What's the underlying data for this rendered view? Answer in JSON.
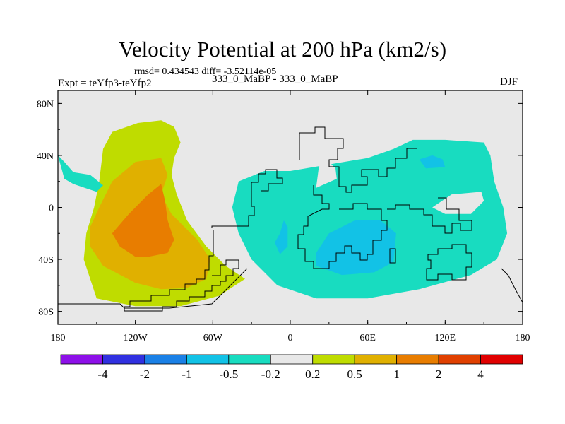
{
  "chart_data": {
    "type": "heatmap",
    "title": "Velocity Potential at 200 hPa (km2/s)",
    "stats": "rmsd= 0.434543 diff= -3.52114e-05",
    "left_label": "Expt = teYfp3-teYfp2",
    "center_label": "333_0_MaBP - 333_0_MaBP",
    "right_label": "DJF",
    "x_axis": {
      "range": [
        -180,
        180
      ],
      "ticks": [
        -180,
        -120,
        -60,
        0,
        60,
        120,
        180
      ],
      "tick_labels": [
        "180",
        "120W",
        "60W",
        "0",
        "60E",
        "120E",
        "180"
      ]
    },
    "y_axis": {
      "range": [
        -90,
        90
      ],
      "ticks": [
        80,
        40,
        0,
        -40,
        -80
      ],
      "tick_labels": [
        "80N",
        "40N",
        "0",
        "40S",
        "80S"
      ]
    },
    "colorbar": {
      "colors": [
        "#8d10e8",
        "#3030e0",
        "#1a80e6",
        "#12c2e6",
        "#18dcc0",
        "#e8e8e8",
        "#bfdc00",
        "#e0b000",
        "#e87d00",
        "#e04000",
        "#e00000"
      ],
      "tick_labels": [
        "-4",
        "-2",
        "-1",
        "-0.5",
        "-0.2",
        "0.2",
        "0.5",
        "1",
        "2",
        "4"
      ]
    },
    "contours": [
      {
        "level": "0.2 to 0.5",
        "color": "#bfdc00",
        "points": [
          [
            -150,
            -70
          ],
          [
            -155,
            -55
          ],
          [
            -160,
            -40
          ],
          [
            -158,
            -20
          ],
          [
            -152,
            0
          ],
          [
            -148,
            20
          ],
          [
            -145,
            45
          ],
          [
            -138,
            58
          ],
          [
            -118,
            65
          ],
          [
            -100,
            67
          ],
          [
            -90,
            62
          ],
          [
            -85,
            50
          ],
          [
            -90,
            38
          ],
          [
            -92,
            25
          ],
          [
            -88,
            10
          ],
          [
            -80,
            -10
          ],
          [
            -65,
            -30
          ],
          [
            -50,
            -45
          ],
          [
            -35,
            -55
          ],
          [
            -55,
            -68
          ],
          [
            -85,
            -76
          ],
          [
            -120,
            -76
          ]
        ]
      },
      {
        "level": "0.5 to 1",
        "color": "#e0b000",
        "points": [
          [
            -120,
            -58
          ],
          [
            -145,
            -45
          ],
          [
            -155,
            -30
          ],
          [
            -155,
            -15
          ],
          [
            -148,
            0
          ],
          [
            -138,
            20
          ],
          [
            -120,
            35
          ],
          [
            -100,
            38
          ],
          [
            -95,
            25
          ],
          [
            -100,
            10
          ],
          [
            -92,
            -5
          ],
          [
            -72,
            -25
          ],
          [
            -62,
            -40
          ],
          [
            -65,
            -55
          ],
          [
            -80,
            -62
          ],
          [
            -100,
            -63
          ]
        ]
      },
      {
        "level": "1 to 2",
        "color": "#e87d00",
        "points": [
          [
            -120,
            -38
          ],
          [
            -132,
            -30
          ],
          [
            -138,
            -20
          ],
          [
            -125,
            -5
          ],
          [
            -110,
            10
          ],
          [
            -100,
            18
          ],
          [
            -97,
            5
          ],
          [
            -95,
            -10
          ],
          [
            -90,
            -25
          ],
          [
            -95,
            -35
          ],
          [
            -110,
            -38
          ]
        ]
      },
      {
        "level": "-0.2 to -0.5",
        "color": "#18dcc0",
        "points": [
          [
            -180,
            40
          ],
          [
            -175,
            22
          ],
          [
            -168,
            18
          ],
          [
            -150,
            12
          ],
          [
            -145,
            17
          ],
          [
            -155,
            25
          ],
          [
            -168,
            27
          ],
          [
            -175,
            35
          ]
        ]
      },
      {
        "level": "-0.2 to -0.5",
        "color": "#18dcc0",
        "points": [
          [
            -40,
            20
          ],
          [
            -45,
            0
          ],
          [
            -40,
            -20
          ],
          [
            -30,
            -40
          ],
          [
            -10,
            -60
          ],
          [
            20,
            -70
          ],
          [
            60,
            -70
          ],
          [
            100,
            -63
          ],
          [
            140,
            -52
          ],
          [
            160,
            -40
          ],
          [
            168,
            -20
          ],
          [
            165,
            0
          ],
          [
            158,
            20
          ],
          [
            155,
            40
          ],
          [
            150,
            50
          ],
          [
            120,
            52
          ],
          [
            95,
            52
          ],
          [
            80,
            45
          ],
          [
            60,
            38
          ],
          [
            30,
            33
          ],
          [
            0,
            28
          ],
          [
            -20,
            28
          ]
        ]
      },
      {
        "level": "-0.5 to -1",
        "color": "#12c2e6",
        "points": [
          [
            -8,
            -20
          ],
          [
            -12,
            -27
          ],
          [
            -8,
            -36
          ],
          [
            -2,
            -30
          ],
          [
            -2,
            -15
          ],
          [
            -5,
            -10
          ]
        ]
      },
      {
        "level": "-0.5 to -1",
        "color": "#12c2e6",
        "points": [
          [
            20,
            -45
          ],
          [
            40,
            -52
          ],
          [
            65,
            -50
          ],
          [
            80,
            -42
          ],
          [
            82,
            -20
          ],
          [
            70,
            -10
          ],
          [
            50,
            -10
          ],
          [
            30,
            -20
          ],
          [
            20,
            -35
          ]
        ]
      },
      {
        "level": "-0.5 to -1",
        "color": "#12c2e6",
        "points": [
          [
            100,
            37
          ],
          [
            105,
            30
          ],
          [
            120,
            31
          ],
          [
            118,
            37
          ],
          [
            110,
            40
          ]
        ]
      },
      {
        "level": "-0.2 to 0.2",
        "color": "#e8e8e8",
        "points": [
          [
            125,
            10
          ],
          [
            148,
            12
          ],
          [
            150,
            5
          ],
          [
            140,
            -5
          ],
          [
            120,
            -5
          ],
          [
            110,
            0
          ]
        ]
      },
      {
        "level": "-0.2 to 0.2",
        "color": "#e8e8e8",
        "points": [
          [
            20,
            15
          ],
          [
            36,
            22
          ],
          [
            35,
            30
          ],
          [
            25,
            40
          ],
          [
            22,
            30
          ]
        ]
      }
    ]
  }
}
